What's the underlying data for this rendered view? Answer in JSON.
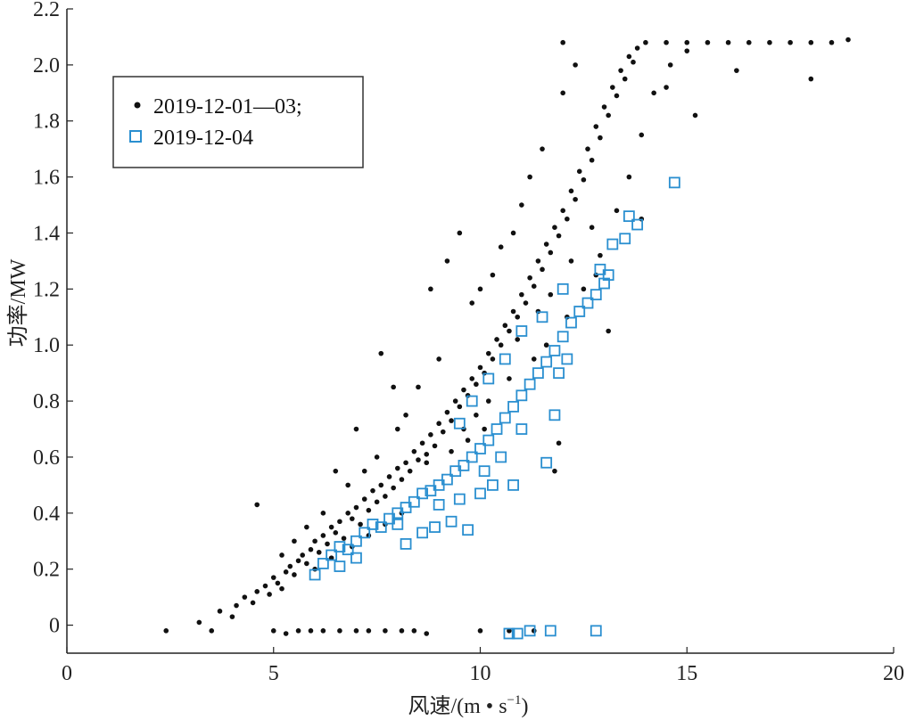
{
  "chart_data": {
    "type": "scatter",
    "title": "",
    "xlabel": "风速/(m • s",
    "xlabel_sup": "−1",
    "xlabel_close": ")",
    "ylabel": "功率/MW",
    "xlim": [
      0,
      20
    ],
    "ylim": [
      -0.1,
      2.2
    ],
    "x_ticks": [
      0,
      5,
      10,
      15,
      20
    ],
    "x_tick_labels": [
      "0",
      "5",
      "10",
      "15",
      "20"
    ],
    "y_ticks": [
      0,
      0.2,
      0.4,
      0.6,
      0.8,
      1.0,
      1.2,
      1.4,
      1.6,
      1.8,
      2.0,
      2.2
    ],
    "y_tick_labels": [
      "0",
      "0.2",
      "0.4",
      "0.6",
      "0.8",
      "1.0",
      "1.2",
      "1.4",
      "1.6",
      "1.8",
      "2.0",
      "2.2"
    ],
    "grid": false,
    "legend_position": "top-left",
    "series": [
      {
        "name": "2019-12-01—03;",
        "marker": "dot",
        "color": "#111111",
        "points": [
          [
            2.4,
            -0.02
          ],
          [
            3.2,
            0.01
          ],
          [
            3.5,
            -0.02
          ],
          [
            3.7,
            0.05
          ],
          [
            4.0,
            0.03
          ],
          [
            4.1,
            0.07
          ],
          [
            4.3,
            0.1
          ],
          [
            4.5,
            0.08
          ],
          [
            4.6,
            0.12
          ],
          [
            4.8,
            0.14
          ],
          [
            4.9,
            0.11
          ],
          [
            5.0,
            0.17
          ],
          [
            5.1,
            0.15
          ],
          [
            5.2,
            0.13
          ],
          [
            5.3,
            0.19
          ],
          [
            5.4,
            0.21
          ],
          [
            5.5,
            0.18
          ],
          [
            5.6,
            0.23
          ],
          [
            5.7,
            0.25
          ],
          [
            5.8,
            0.22
          ],
          [
            5.9,
            0.27
          ],
          [
            6.0,
            0.3
          ],
          [
            6.1,
            0.26
          ],
          [
            6.2,
            0.32
          ],
          [
            6.3,
            0.29
          ],
          [
            6.4,
            0.35
          ],
          [
            6.5,
            0.33
          ],
          [
            6.6,
            0.37
          ],
          [
            6.7,
            0.31
          ],
          [
            6.8,
            0.4
          ],
          [
            6.9,
            0.38
          ],
          [
            7.0,
            0.42
          ],
          [
            7.1,
            0.36
          ],
          [
            7.2,
            0.45
          ],
          [
            7.3,
            0.41
          ],
          [
            7.4,
            0.48
          ],
          [
            7.5,
            0.44
          ],
          [
            7.6,
            0.5
          ],
          [
            7.7,
            0.46
          ],
          [
            7.8,
            0.53
          ],
          [
            7.9,
            0.49
          ],
          [
            8.0,
            0.56
          ],
          [
            8.1,
            0.52
          ],
          [
            8.2,
            0.58
          ],
          [
            8.3,
            0.55
          ],
          [
            8.4,
            0.62
          ],
          [
            8.5,
            0.59
          ],
          [
            8.6,
            0.65
          ],
          [
            8.7,
            0.61
          ],
          [
            8.8,
            0.68
          ],
          [
            8.9,
            0.64
          ],
          [
            9.0,
            0.72
          ],
          [
            9.1,
            0.69
          ],
          [
            9.2,
            0.76
          ],
          [
            9.3,
            0.73
          ],
          [
            9.4,
            0.8
          ],
          [
            9.5,
            0.78
          ],
          [
            9.6,
            0.84
          ],
          [
            9.7,
            0.82
          ],
          [
            9.8,
            0.88
          ],
          [
            9.9,
            0.86
          ],
          [
            10.0,
            0.92
          ],
          [
            10.1,
            0.9
          ],
          [
            10.2,
            0.97
          ],
          [
            10.3,
            0.95
          ],
          [
            10.4,
            1.02
          ],
          [
            10.5,
            1.0
          ],
          [
            10.6,
            1.07
          ],
          [
            10.7,
            1.05
          ],
          [
            10.8,
            1.12
          ],
          [
            10.9,
            1.1
          ],
          [
            11.0,
            1.18
          ],
          [
            11.1,
            1.15
          ],
          [
            11.2,
            1.24
          ],
          [
            11.3,
            1.21
          ],
          [
            11.4,
            1.3
          ],
          [
            11.5,
            1.27
          ],
          [
            11.6,
            1.36
          ],
          [
            11.7,
            1.33
          ],
          [
            11.8,
            1.42
          ],
          [
            11.9,
            1.39
          ],
          [
            12.0,
            1.48
          ],
          [
            12.1,
            1.45
          ],
          [
            12.2,
            1.55
          ],
          [
            12.3,
            1.52
          ],
          [
            12.4,
            1.62
          ],
          [
            12.5,
            1.59
          ],
          [
            12.6,
            1.7
          ],
          [
            12.7,
            1.66
          ],
          [
            12.8,
            1.78
          ],
          [
            12.9,
            1.74
          ],
          [
            13.0,
            1.85
          ],
          [
            13.1,
            1.82
          ],
          [
            13.2,
            1.92
          ],
          [
            13.3,
            1.89
          ],
          [
            13.4,
            1.98
          ],
          [
            13.5,
            1.95
          ],
          [
            13.6,
            2.03
          ],
          [
            13.7,
            2.01
          ],
          [
            13.8,
            2.06
          ],
          [
            14.0,
            2.08
          ],
          [
            14.5,
            2.08
          ],
          [
            15.0,
            2.08
          ],
          [
            15.5,
            2.08
          ],
          [
            16.0,
            2.08
          ],
          [
            16.5,
            2.08
          ],
          [
            17.0,
            2.08
          ],
          [
            17.5,
            2.08
          ],
          [
            18.0,
            2.08
          ],
          [
            18.5,
            2.08
          ],
          [
            18.9,
            2.09
          ],
          [
            16.2,
            1.98
          ],
          [
            18.0,
            1.95
          ],
          [
            14.5,
            1.92
          ],
          [
            15.2,
            1.82
          ],
          [
            13.9,
            1.45
          ],
          [
            12.8,
            1.25
          ],
          [
            13.1,
            1.05
          ],
          [
            11.9,
            0.65
          ],
          [
            11.8,
            0.55
          ],
          [
            7.6,
            0.97
          ],
          [
            9.5,
            1.4
          ],
          [
            9.2,
            1.3
          ],
          [
            8.8,
            1.2
          ],
          [
            7.9,
            0.85
          ],
          [
            8.2,
            0.75
          ],
          [
            7.0,
            0.7
          ],
          [
            6.5,
            0.55
          ],
          [
            4.6,
            0.43
          ],
          [
            10.0,
            1.2
          ],
          [
            9.8,
            1.15
          ],
          [
            10.5,
            1.35
          ],
          [
            11.0,
            1.5
          ],
          [
            11.5,
            1.7
          ],
          [
            12.0,
            1.9
          ],
          [
            12.3,
            2.0
          ],
          [
            12.0,
            2.08
          ],
          [
            11.2,
            1.6
          ],
          [
            10.8,
            1.4
          ],
          [
            10.3,
            1.25
          ],
          [
            9.0,
            0.95
          ],
          [
            8.5,
            0.85
          ],
          [
            8.0,
            0.7
          ],
          [
            7.5,
            0.6
          ],
          [
            7.2,
            0.55
          ],
          [
            6.8,
            0.5
          ],
          [
            6.2,
            0.4
          ],
          [
            5.8,
            0.35
          ],
          [
            5.5,
            0.3
          ],
          [
            5.2,
            0.25
          ],
          [
            9.6,
            0.7
          ],
          [
            9.9,
            0.75
          ],
          [
            10.2,
            0.8
          ],
          [
            10.7,
            0.88
          ],
          [
            11.3,
            0.95
          ],
          [
            11.6,
            1.0
          ],
          [
            12.1,
            1.1
          ],
          [
            12.5,
            1.2
          ],
          [
            12.9,
            1.32
          ],
          [
            13.3,
            1.48
          ],
          [
            13.6,
            1.6
          ],
          [
            13.9,
            1.75
          ],
          [
            14.2,
            1.9
          ],
          [
            14.6,
            2.0
          ],
          [
            15.0,
            2.05
          ],
          [
            12.7,
            1.42
          ],
          [
            12.2,
            1.3
          ],
          [
            11.7,
            1.18
          ],
          [
            11.4,
            1.12
          ],
          [
            10.9,
            1.02
          ],
          [
            8.7,
            0.58
          ],
          [
            9.3,
            0.62
          ],
          [
            9.7,
            0.66
          ],
          [
            10.1,
            0.7
          ],
          [
            6.0,
            0.2
          ],
          [
            6.4,
            0.24
          ],
          [
            6.9,
            0.28
          ],
          [
            7.3,
            0.32
          ],
          [
            7.7,
            0.36
          ],
          [
            8.1,
            0.4
          ],
          [
            5.0,
            -0.02
          ],
          [
            5.3,
            -0.03
          ],
          [
            5.6,
            -0.02
          ],
          [
            5.9,
            -0.02
          ],
          [
            6.2,
            -0.02
          ],
          [
            6.6,
            -0.02
          ],
          [
            7.0,
            -0.02
          ],
          [
            7.3,
            -0.02
          ],
          [
            7.7,
            -0.02
          ],
          [
            8.1,
            -0.02
          ],
          [
            8.4,
            -0.02
          ],
          [
            8.7,
            -0.03
          ],
          [
            10.0,
            -0.02
          ],
          [
            10.7,
            -0.02
          ],
          [
            11.3,
            -0.02
          ]
        ]
      },
      {
        "name": "2019-12-04",
        "marker": "square",
        "color": "#2a8fd0",
        "points": [
          [
            6.0,
            0.18
          ],
          [
            6.2,
            0.22
          ],
          [
            6.4,
            0.25
          ],
          [
            6.6,
            0.28
          ],
          [
            6.8,
            0.27
          ],
          [
            7.0,
            0.3
          ],
          [
            7.2,
            0.33
          ],
          [
            7.4,
            0.36
          ],
          [
            7.6,
            0.35
          ],
          [
            7.8,
            0.38
          ],
          [
            8.0,
            0.4
          ],
          [
            8.2,
            0.42
          ],
          [
            8.4,
            0.44
          ],
          [
            8.6,
            0.47
          ],
          [
            8.8,
            0.48
          ],
          [
            9.0,
            0.5
          ],
          [
            9.2,
            0.52
          ],
          [
            9.4,
            0.55
          ],
          [
            9.6,
            0.57
          ],
          [
            9.8,
            0.6
          ],
          [
            10.0,
            0.63
          ],
          [
            10.2,
            0.66
          ],
          [
            10.4,
            0.7
          ],
          [
            10.6,
            0.74
          ],
          [
            10.8,
            0.78
          ],
          [
            11.0,
            0.82
          ],
          [
            11.2,
            0.86
          ],
          [
            11.4,
            0.9
          ],
          [
            11.6,
            0.94
          ],
          [
            11.8,
            0.98
          ],
          [
            12.0,
            1.03
          ],
          [
            12.2,
            1.08
          ],
          [
            12.4,
            1.12
          ],
          [
            12.6,
            1.15
          ],
          [
            12.8,
            1.18
          ],
          [
            13.0,
            1.22
          ],
          [
            13.2,
            1.36
          ],
          [
            13.5,
            1.38
          ],
          [
            13.6,
            1.46
          ],
          [
            13.8,
            1.43
          ],
          [
            14.7,
            1.58
          ],
          [
            12.9,
            1.27
          ],
          [
            13.1,
            1.25
          ],
          [
            12.0,
            1.2
          ],
          [
            11.5,
            1.1
          ],
          [
            11.0,
            1.05
          ],
          [
            10.6,
            0.95
          ],
          [
            10.2,
            0.88
          ],
          [
            9.8,
            0.8
          ],
          [
            9.5,
            0.72
          ],
          [
            8.2,
            0.29
          ],
          [
            8.9,
            0.35
          ],
          [
            9.3,
            0.37
          ],
          [
            9.7,
            0.34
          ],
          [
            10.8,
            0.5
          ],
          [
            11.6,
            0.58
          ],
          [
            11.8,
            0.75
          ],
          [
            10.3,
            0.5
          ],
          [
            10.0,
            0.47
          ],
          [
            9.5,
            0.45
          ],
          [
            7.0,
            0.24
          ],
          [
            6.6,
            0.21
          ],
          [
            8.6,
            0.33
          ],
          [
            10.1,
            0.55
          ],
          [
            11.0,
            0.7
          ],
          [
            11.9,
            0.9
          ],
          [
            12.1,
            0.95
          ],
          [
            10.5,
            0.6
          ],
          [
            9.0,
            0.43
          ],
          [
            8.0,
            0.36
          ],
          [
            10.7,
            -0.03
          ],
          [
            10.9,
            -0.03
          ],
          [
            11.2,
            -0.02
          ],
          [
            11.7,
            -0.02
          ],
          [
            12.8,
            -0.02
          ]
        ]
      }
    ]
  }
}
